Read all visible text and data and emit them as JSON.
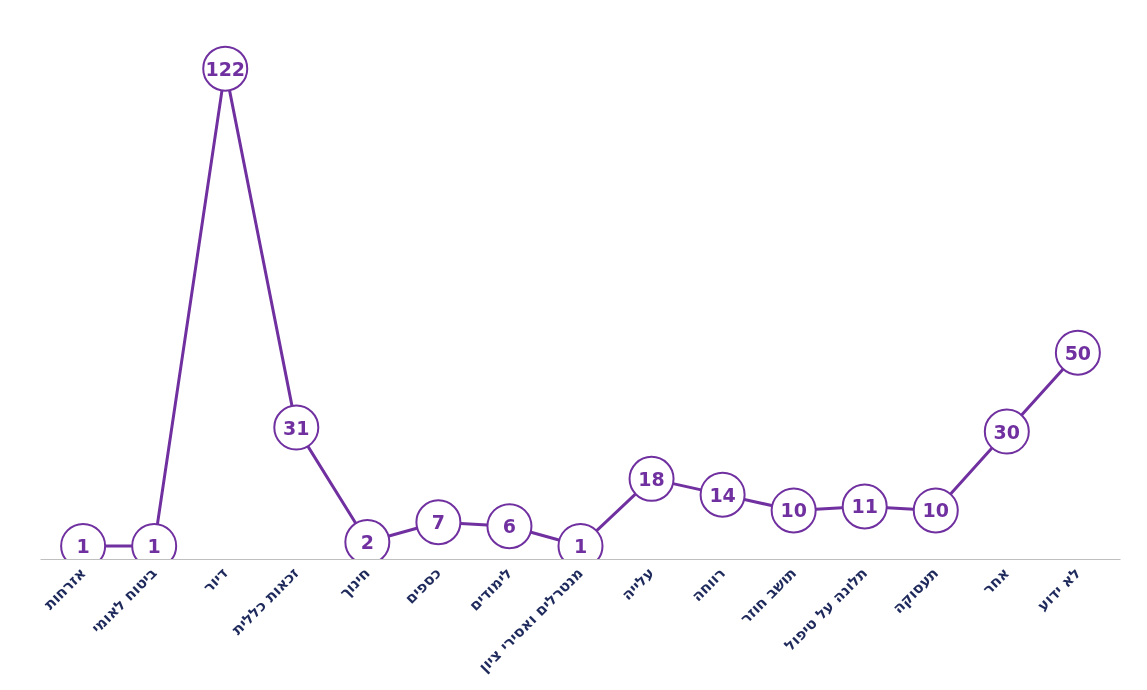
{
  "chart_data": {
    "type": "line",
    "categories": [
      "אזרחות",
      "ביטוח לאומי",
      "דיור",
      "זכאות כללית",
      "חינוך",
      "כספים",
      "לימודים",
      "מנטרלים ואסירי ציון",
      "עלייה",
      "רווחה",
      "תושב חוזר",
      "תלונה על טיפול",
      "תעסוקה",
      "אחר",
      "לא ידוע"
    ],
    "series": [
      {
        "color": "#7030a0",
        "values": [
          1,
          1,
          122,
          31,
          2,
          7,
          6,
          1,
          18,
          14,
          10,
          11,
          10,
          30,
          50
        ]
      }
    ],
    "data_labels": true,
    "marker": "circle",
    "grid": false,
    "tick_labels": "x"
  }
}
